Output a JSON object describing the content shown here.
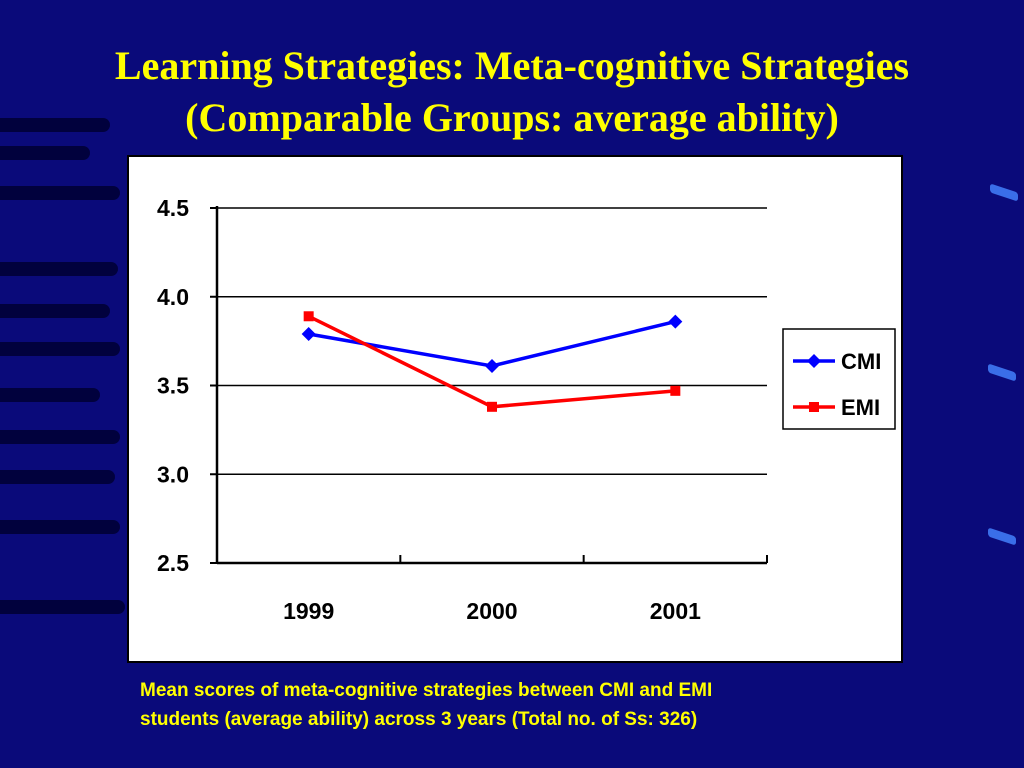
{
  "slide": {
    "title_line1": "Learning Strategies: Meta-cognitive Strategies",
    "title_line2": "(Comparable Groups: average ability)",
    "caption_line1": "Mean scores of meta-cognitive strategies between CMI and EMI",
    "caption_line2": "students (average ability) across 3 years (Total no. of Ss: 326)"
  },
  "colors": {
    "background": "#0a0a7a",
    "title": "#ffff00",
    "cmi": "#0000ff",
    "emi": "#ff0000"
  },
  "chart_data": {
    "type": "line",
    "title": "",
    "xlabel": "",
    "ylabel": "",
    "categories": [
      "1999",
      "2000",
      "2001"
    ],
    "ylim": [
      2.5,
      4.5
    ],
    "yticks": [
      "2.5",
      "3.0",
      "3.5",
      "4.0",
      "4.5"
    ],
    "grid": true,
    "legend_position": "right",
    "series": [
      {
        "name": "CMI",
        "marker": "diamond",
        "color": "#0000ff",
        "values": [
          3.79,
          3.61,
          3.86
        ]
      },
      {
        "name": "EMI",
        "marker": "square",
        "color": "#ff0000",
        "values": [
          3.89,
          3.38,
          3.47
        ]
      }
    ]
  }
}
